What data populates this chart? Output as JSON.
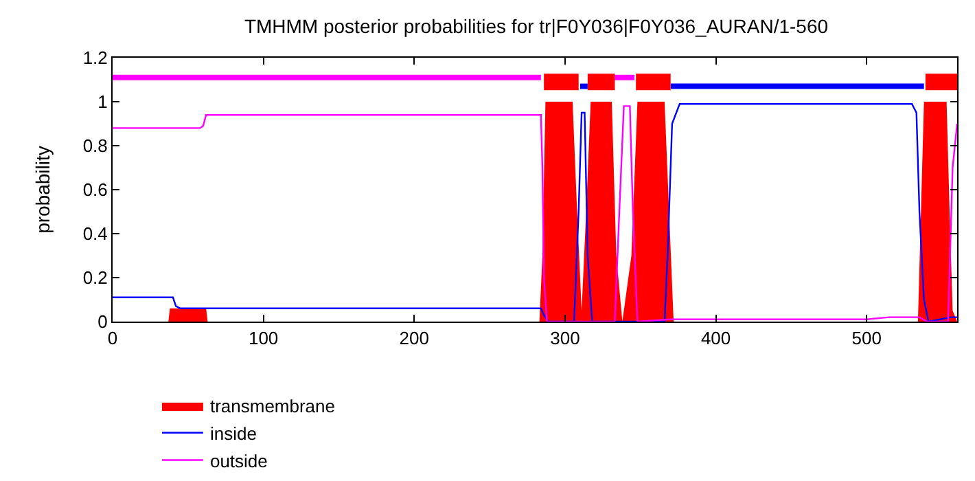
{
  "chart_data": {
    "type": "line",
    "title": "TMHMM posterior probabilities for tr|F0Y036|F0Y036_AURAN/1-560",
    "ylabel": "probability",
    "xlim": [
      0,
      560
    ],
    "xticks": [
      0,
      100,
      200,
      300,
      400,
      500
    ],
    "ylim": [
      0,
      1.2
    ],
    "yticks": [
      0,
      0.2,
      0.4,
      0.6,
      0.8,
      1,
      1.2
    ],
    "legend": "bottom",
    "marker": "none",
    "line_style": "solid",
    "series": [
      {
        "name": "transmembrane",
        "type": "area",
        "color": "#ff0000",
        "x": [
          0,
          37,
          38,
          62,
          63,
          283,
          285,
          287,
          305,
          308,
          311,
          314,
          317,
          331,
          334,
          338,
          344,
          348,
          366,
          369,
          372,
          534,
          536,
          538,
          553,
          555,
          557,
          560
        ],
        "values": [
          0,
          0,
          0.06,
          0.06,
          0,
          0,
          0.3,
          1.0,
          1.0,
          0.5,
          0.05,
          0.5,
          1.0,
          1.0,
          0.3,
          0,
          0.3,
          1.0,
          1.0,
          0.5,
          0,
          0,
          0.5,
          1.0,
          1.0,
          0.5,
          0.05,
          0
        ]
      },
      {
        "name": "inside",
        "color": "#0000ff",
        "x": [
          0,
          40,
          42,
          45,
          284,
          286,
          289,
          306,
          309,
          311,
          313,
          315,
          318,
          366,
          368,
          371,
          376,
          530,
          533,
          535,
          538,
          541,
          556,
          560
        ],
        "values": [
          0.11,
          0.11,
          0.07,
          0.06,
          0.06,
          0.03,
          0,
          0,
          0.5,
          0.95,
          0.95,
          0.3,
          0,
          0,
          0.3,
          0.9,
          0.99,
          0.99,
          0.95,
          0.5,
          0.1,
          0,
          0.02,
          0.02
        ]
      },
      {
        "name": "outside",
        "color": "#ff00ff",
        "x": [
          0,
          58,
          60,
          62,
          284,
          285,
          286,
          288,
          333,
          336,
          339,
          343,
          345,
          348,
          370,
          500,
          515,
          535,
          540,
          554,
          557,
          560
        ],
        "values": [
          0.88,
          0.88,
          0.89,
          0.94,
          0.94,
          0.7,
          0.2,
          0,
          0,
          0.5,
          0.98,
          0.98,
          0.5,
          0,
          0.01,
          0.01,
          0.02,
          0.02,
          0,
          0,
          0.7,
          0.9
        ]
      },
      {
        "color": "#ff00ff",
        "x": [
          0,
          284
        ],
        "values": [
          1.11,
          1.11
        ]
      },
      {
        "color": "#ff00ff",
        "x": [
          333,
          346
        ],
        "values": [
          1.11,
          1.11
        ]
      },
      {
        "color": "#0000ff",
        "x": [
          310,
          315
        ],
        "values": [
          1.07,
          1.07
        ]
      },
      {
        "color": "#0000ff",
        "x": [
          370,
          538
        ],
        "values": [
          1.07,
          1.07
        ]
      },
      {
        "color": "#ff0000",
        "x": [
          286,
          309
        ],
        "values": [
          1.09,
          1.09
        ]
      },
      {
        "color": "#ff0000",
        "x": [
          315,
          333
        ],
        "values": [
          1.09,
          1.09
        ]
      },
      {
        "color": "#ff0000",
        "x": [
          347,
          370
        ],
        "values": [
          1.09,
          1.09
        ]
      },
      {
        "color": "#ff0000",
        "x": [
          539,
          560
        ],
        "values": [
          1.09,
          1.09
        ]
      }
    ]
  }
}
